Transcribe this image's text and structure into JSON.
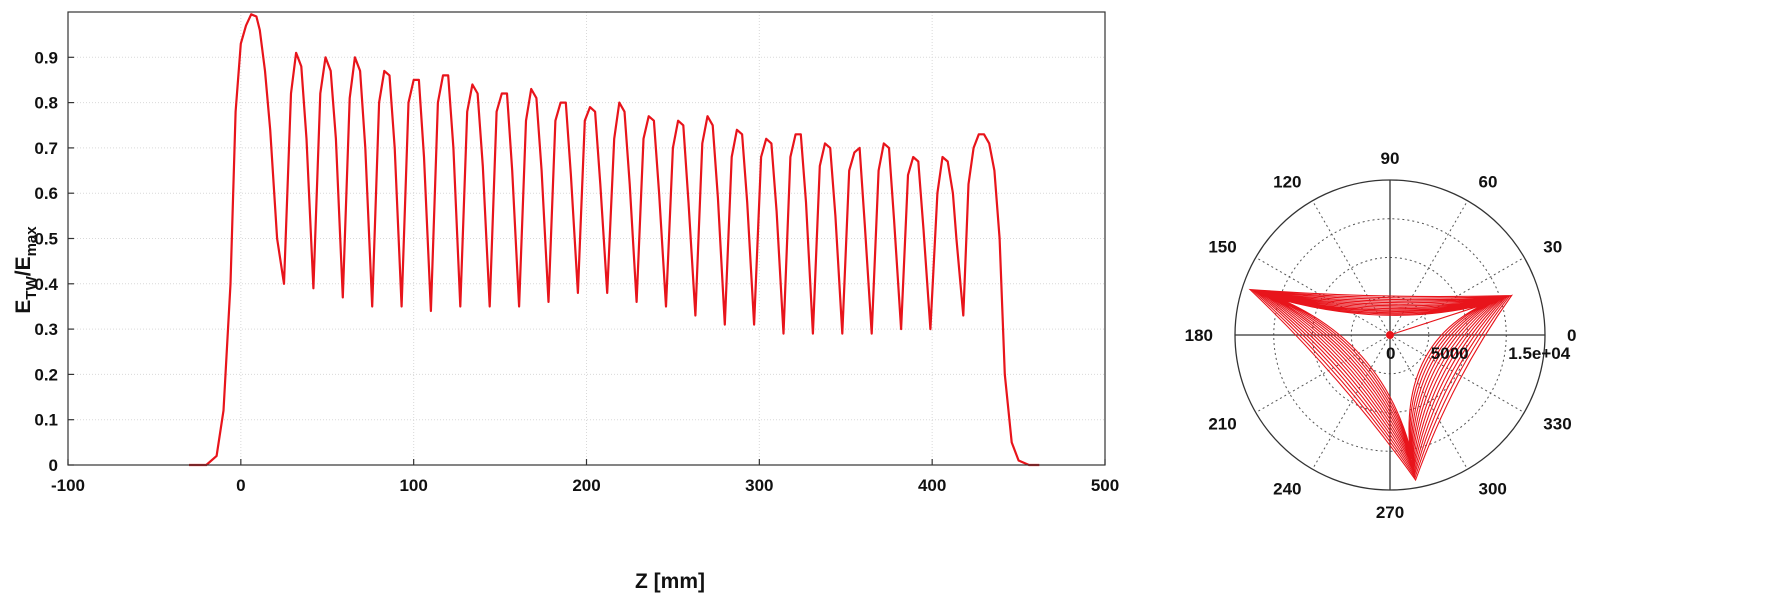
{
  "colors": {
    "line": "#e8141b",
    "axis": "#333333",
    "grid": "#d9d9d9",
    "polar_grid": "#555555",
    "text": "#111111"
  },
  "chart_data": [
    {
      "type": "line",
      "title": "",
      "xlabel": "Z [mm]",
      "ylabel_main": "E",
      "ylabel_sub1": "TW",
      "ylabel_mid": "/E",
      "ylabel_sub2": "max",
      "xlim": [
        -100,
        500
      ],
      "ylim": [
        0,
        1.0
      ],
      "xticks": [
        "-100",
        "0",
        "100",
        "200",
        "300",
        "400",
        "500"
      ],
      "yticks": [
        "0",
        "0.1",
        "0.2",
        "0.3",
        "0.4",
        "0.5",
        "0.6",
        "0.7",
        "0.8",
        "0.9"
      ],
      "grid": true,
      "series": [
        {
          "x": [
            -30,
            -20,
            -14,
            -10,
            -6,
            -3,
            0,
            3,
            6,
            9,
            11,
            14,
            17,
            21,
            25,
            29,
            32,
            35,
            38,
            42,
            46,
            49,
            52,
            55,
            59,
            63,
            66,
            69,
            72,
            76,
            80,
            83,
            86,
            89,
            93,
            97,
            100,
            103,
            106,
            110,
            114,
            117,
            120,
            123,
            127,
            131,
            134,
            137,
            140,
            144,
            148,
            151,
            154,
            157,
            161,
            165,
            168,
            171,
            174,
            178,
            182,
            185,
            188,
            191,
            195,
            199,
            202,
            205,
            208,
            212,
            216,
            219,
            222,
            225,
            229,
            233,
            236,
            239,
            242,
            246,
            250,
            253,
            256,
            259,
            263,
            267,
            270,
            273,
            276,
            280,
            284,
            287,
            290,
            293,
            297,
            301,
            304,
            307,
            310,
            314,
            318,
            321,
            324,
            327,
            331,
            335,
            338,
            341,
            344,
            348,
            352,
            355,
            358,
            361,
            365,
            369,
            372,
            375,
            378,
            382,
            386,
            389,
            392,
            395,
            399,
            403,
            406,
            409,
            412,
            414,
            418,
            421,
            424,
            427,
            430,
            433,
            436,
            439,
            442,
            446,
            450,
            456,
            462
          ],
          "y": [
            0.0,
            0.0,
            0.02,
            0.12,
            0.4,
            0.78,
            0.93,
            0.97,
            0.995,
            0.99,
            0.96,
            0.87,
            0.74,
            0.5,
            0.4,
            0.82,
            0.91,
            0.88,
            0.72,
            0.39,
            0.82,
            0.9,
            0.87,
            0.72,
            0.37,
            0.81,
            0.9,
            0.87,
            0.7,
            0.35,
            0.8,
            0.87,
            0.86,
            0.7,
            0.35,
            0.8,
            0.85,
            0.85,
            0.68,
            0.34,
            0.8,
            0.86,
            0.86,
            0.7,
            0.35,
            0.78,
            0.84,
            0.82,
            0.66,
            0.35,
            0.78,
            0.82,
            0.82,
            0.65,
            0.35,
            0.76,
            0.83,
            0.81,
            0.65,
            0.36,
            0.76,
            0.8,
            0.8,
            0.64,
            0.38,
            0.76,
            0.79,
            0.78,
            0.62,
            0.38,
            0.72,
            0.8,
            0.78,
            0.62,
            0.36,
            0.72,
            0.77,
            0.76,
            0.6,
            0.35,
            0.7,
            0.76,
            0.75,
            0.58,
            0.33,
            0.71,
            0.77,
            0.75,
            0.59,
            0.31,
            0.68,
            0.74,
            0.73,
            0.58,
            0.31,
            0.68,
            0.72,
            0.71,
            0.56,
            0.29,
            0.68,
            0.73,
            0.73,
            0.58,
            0.29,
            0.66,
            0.71,
            0.7,
            0.55,
            0.29,
            0.65,
            0.69,
            0.7,
            0.53,
            0.29,
            0.65,
            0.71,
            0.7,
            0.54,
            0.3,
            0.64,
            0.68,
            0.67,
            0.52,
            0.3,
            0.6,
            0.68,
            0.67,
            0.6,
            0.5,
            0.33,
            0.62,
            0.7,
            0.73,
            0.73,
            0.71,
            0.65,
            0.5,
            0.2,
            0.05,
            0.01,
            0.0,
            0.0
          ]
        }
      ]
    },
    {
      "type": "polar",
      "title": "",
      "rlim": [
        0,
        20000
      ],
      "r_tick_labels": [
        "0",
        "5000",
        "1.5e+04"
      ],
      "r_tick_values": [
        0,
        5000,
        15000
      ],
      "r_rings": [
        5000,
        10000,
        15000,
        20000
      ],
      "angle_tick_labels": [
        "0",
        "30",
        "60",
        "90",
        "120",
        "150",
        "180",
        "210",
        "240",
        "270",
        "300",
        "330"
      ],
      "angle_tick_values": [
        0,
        30,
        60,
        90,
        120,
        150,
        180,
        210,
        240,
        270,
        300,
        330
      ],
      "grid": true,
      "vertices": [
        {
          "theta_deg": 18,
          "r": 16500
        },
        {
          "theta_deg": 162,
          "r": 19000
        },
        {
          "theta_deg": 280,
          "r": 19000
        }
      ],
      "loops": 14
    }
  ]
}
